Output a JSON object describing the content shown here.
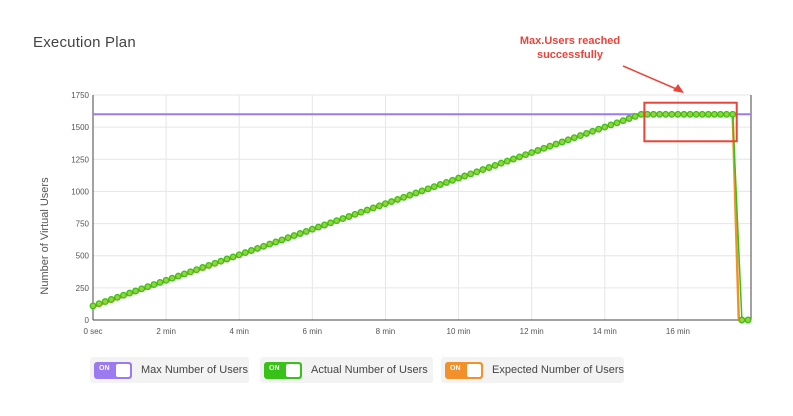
{
  "page": {
    "title": "Execution Plan"
  },
  "annotation": {
    "line1": "Max.Users reached",
    "line2": "successfully"
  },
  "colors": {
    "max": "#9c7bf0",
    "actual": "#38c218",
    "expected": "#f2902a",
    "annotation": "#e8443a",
    "grid": "#e6e6e6"
  },
  "legend": {
    "toggle_on": "ON",
    "items": [
      {
        "label": "Max Number of Users",
        "color": "#9c7bf0",
        "state": "on"
      },
      {
        "label": "Actual Number of Users",
        "color": "#38c218",
        "state": "on"
      },
      {
        "label": "Expected Number of Users",
        "color": "#f2902a",
        "state": "on"
      }
    ]
  },
  "chart_data": {
    "type": "line",
    "title": "",
    "xlabel": "",
    "ylabel": "Number of Virtual Users",
    "xlim": [
      0,
      1080
    ],
    "ylim": [
      0,
      1750
    ],
    "x_ticks": [
      0,
      120,
      240,
      360,
      480,
      600,
      720,
      840,
      960
    ],
    "x_tick_labels": [
      "0 sec",
      "2 min",
      "4 min",
      "6 min",
      "8 min",
      "10 min",
      "12 min",
      "14 min",
      "16 min"
    ],
    "y_ticks": [
      0,
      250,
      500,
      750,
      1000,
      1250,
      1500,
      1750
    ],
    "y_tick_labels": [
      "0",
      "250",
      "500",
      "750",
      "1000",
      "1250",
      "1500",
      "1750"
    ],
    "grid": true,
    "legend_position": "bottom",
    "series": [
      {
        "name": "Max Number of Users",
        "style": "line",
        "x": [
          0,
          1080
        ],
        "y": [
          1600,
          1600
        ]
      },
      {
        "name": "Expected Number of Users",
        "style": "line",
        "x": [
          0,
          900,
          1050,
          1060,
          1080
        ],
        "y": [
          100,
          1600,
          1600,
          0,
          0
        ]
      },
      {
        "name": "Actual Number of Users",
        "style": "line-markers",
        "ramp": {
          "x_start": 0,
          "x_end": 900,
          "y_start": 110,
          "y_end": 1600,
          "points": 91
        },
        "plateau": {
          "x_start": 910,
          "x_end": 1050,
          "y": 1600,
          "points": 15
        },
        "drop": {
          "x": [
            1065,
            1075
          ],
          "y": [
            0,
            0
          ]
        }
      }
    ]
  }
}
